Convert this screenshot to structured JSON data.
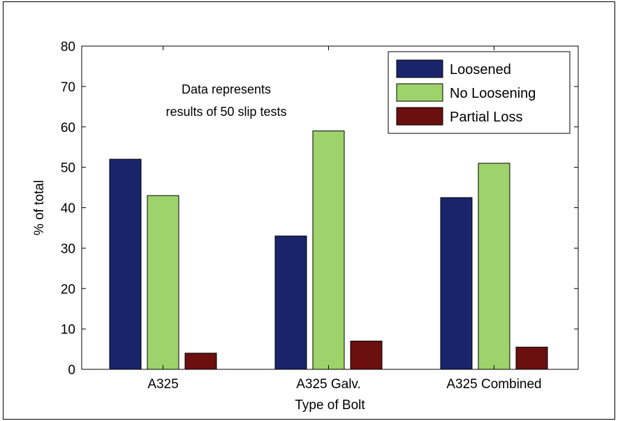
{
  "chart_data": {
    "type": "bar",
    "title": "",
    "xlabel": "Type of Bolt",
    "ylabel": "% of total",
    "ylim": [
      0,
      80
    ],
    "yticks": [
      0,
      10,
      20,
      30,
      40,
      50,
      60,
      70,
      80
    ],
    "categories": [
      "A325",
      "A325 Galv.",
      "A325 Combined"
    ],
    "series": [
      {
        "name": "Loosened",
        "color": "#1a246b",
        "values": [
          52,
          33,
          42.5
        ]
      },
      {
        "name": "No Loosening",
        "color": "#9ed26a",
        "values": [
          43,
          59,
          51
        ]
      },
      {
        "name": "Partial Loss",
        "color": "#6b0f0f",
        "values": [
          4,
          7,
          5.5
        ]
      }
    ],
    "legend_position": "top-right",
    "grid": false,
    "annotation": {
      "line1": "Data represents",
      "line2": "results of 50 slip tests"
    }
  }
}
